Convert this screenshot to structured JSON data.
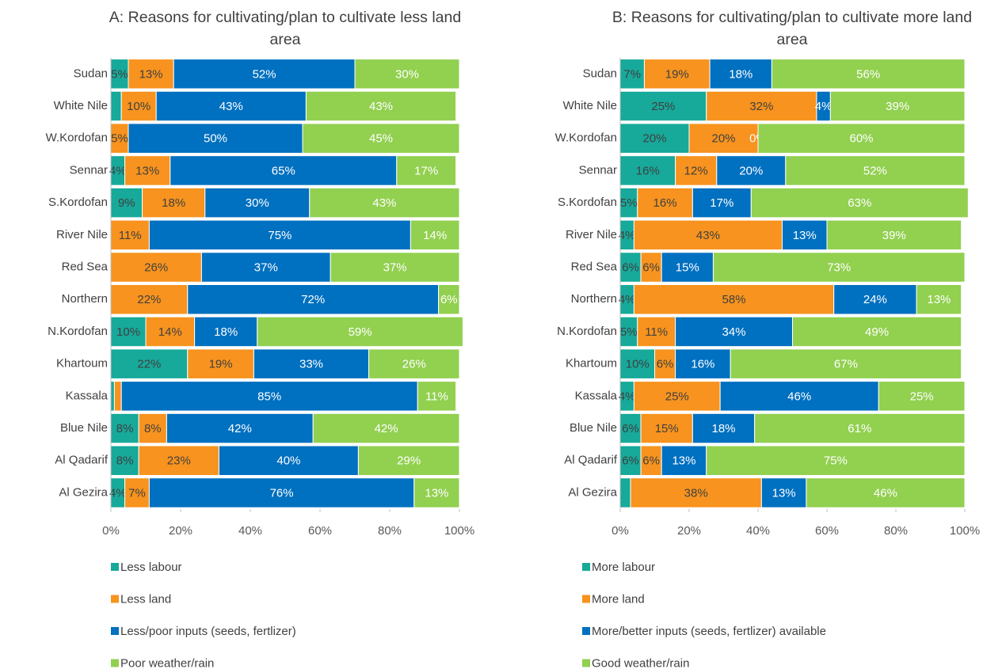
{
  "chart_data": [
    {
      "type": "bar",
      "orientation": "horizontal",
      "stacked": true,
      "title": "A: Reasons for cultivating/plan to cultivate less land area",
      "categories": [
        "Sudan",
        "White Nile",
        "W.Kordofan",
        "Sennar",
        "S.Kordofan",
        "River Nile",
        "Red Sea",
        "Northern",
        "N.Kordofan",
        "Khartoum",
        "Kassala",
        "Blue Nile",
        "Al Qadarif",
        "Al Gezira"
      ],
      "series": [
        {
          "name": "Less labour",
          "color": "#17a99a",
          "label_color": "#404040",
          "values": [
            5,
            3,
            0,
            4,
            9,
            0,
            0,
            0,
            10,
            22,
            1,
            8,
            8,
            4
          ],
          "value_labels": [
            "5%",
            null,
            null,
            "4%",
            "9%",
            null,
            null,
            null,
            "10%",
            "22%",
            null,
            "8%",
            "8%",
            "4%"
          ]
        },
        {
          "name": "Less land",
          "color": "#f7931e",
          "label_color": "#404040",
          "values": [
            13,
            10,
            5,
            13,
            18,
            11,
            26,
            22,
            14,
            19,
            2,
            8,
            23,
            7
          ],
          "value_labels": [
            "13%",
            "10%",
            "5%",
            "13%",
            "18%",
            "11%",
            "26%",
            "22%",
            "14%",
            "19%",
            null,
            "8%",
            "23%",
            "7%"
          ]
        },
        {
          "name": "Less/poor inputs (seeds, fertlizer)",
          "color": "#0070c0",
          "label_color": "#ffffff",
          "values": [
            52,
            43,
            50,
            65,
            30,
            75,
            37,
            72,
            18,
            33,
            85,
            42,
            40,
            76
          ],
          "value_labels": [
            "52%",
            "43%",
            "50%",
            "65%",
            "30%",
            "75%",
            "37%",
            "72%",
            "18%",
            "33%",
            "85%",
            "42%",
            "40%",
            "76%"
          ]
        },
        {
          "name": "Poor weather/rain",
          "color": "#92d050",
          "label_color": "#ffffff",
          "values": [
            30,
            43,
            45,
            17,
            43,
            14,
            37,
            6,
            59,
            26,
            11,
            42,
            29,
            13
          ],
          "value_labels": [
            "30%",
            "43%",
            "45%",
            "17%",
            "43%",
            "14%",
            "37%",
            "6%",
            "59%",
            "26%",
            "11%",
            "42%",
            "29%",
            "13%"
          ]
        }
      ],
      "xlim": [
        0,
        100
      ],
      "xticks": [
        {
          "value": 0,
          "label": "0%"
        },
        {
          "value": 20,
          "label": "20%"
        },
        {
          "value": 40,
          "label": "40%"
        },
        {
          "value": 60,
          "label": "60%"
        },
        {
          "value": 80,
          "label": "80%"
        },
        {
          "value": 100,
          "label": "100%"
        }
      ]
    },
    {
      "type": "bar",
      "orientation": "horizontal",
      "stacked": true,
      "title": "B: Reasons for cultivating/plan to cultivate more land area",
      "categories": [
        "Sudan",
        "White Nile",
        "W.Kordofan",
        "Sennar",
        "S.Kordofan",
        "River Nile",
        "Red Sea",
        "Northern",
        "N.Kordofan",
        "Khartoum",
        "Kassala",
        "Blue Nile",
        "Al Qadarif",
        "Al Gezira"
      ],
      "series": [
        {
          "name": "More labour",
          "color": "#17a99a",
          "label_color": "#404040",
          "values": [
            7,
            25,
            20,
            16,
            5,
            4,
            6,
            4,
            5,
            10,
            4,
            6,
            6,
            3
          ],
          "value_labels": [
            "7%",
            "25%",
            "20%",
            "16%",
            "5%",
            "4%",
            "6%",
            "4%",
            "5%",
            "10%",
            "4%",
            "6%",
            "6%",
            null
          ]
        },
        {
          "name": "More land",
          "color": "#f7931e",
          "label_color": "#404040",
          "values": [
            19,
            32,
            20,
            12,
            16,
            43,
            6,
            58,
            11,
            6,
            25,
            15,
            6,
            38
          ],
          "value_labels": [
            "19%",
            "32%",
            "20%",
            "12%",
            "16%",
            "43%",
            "6%",
            "58%",
            "11%",
            "6%",
            "25%",
            "15%",
            "6%",
            "38%"
          ]
        },
        {
          "name": "More/better inputs (seeds, fertlizer) available",
          "color": "#0070c0",
          "label_color": "#ffffff",
          "values": [
            18,
            4,
            0,
            20,
            17,
            13,
            15,
            24,
            34,
            16,
            46,
            18,
            13,
            13
          ],
          "value_labels": [
            "18%",
            "4%",
            "0%",
            "20%",
            "17%",
            "13%",
            "15%",
            "24%",
            "34%",
            "16%",
            "46%",
            "18%",
            "13%",
            "13%"
          ]
        },
        {
          "name": "Good weather/rain",
          "color": "#92d050",
          "label_color": "#ffffff",
          "values": [
            56,
            39,
            60,
            52,
            63,
            39,
            73,
            13,
            49,
            67,
            25,
            61,
            75,
            46
          ],
          "value_labels": [
            "56%",
            "39%",
            "60%",
            "52%",
            "63%",
            "39%",
            "73%",
            "13%",
            "49%",
            "67%",
            "25%",
            "61%",
            "75%",
            "46%"
          ]
        }
      ],
      "xlim": [
        0,
        100
      ],
      "xticks": [
        {
          "value": 0,
          "label": "0%"
        },
        {
          "value": 20,
          "label": "20%"
        },
        {
          "value": 40,
          "label": "40%"
        },
        {
          "value": 60,
          "label": "60%"
        },
        {
          "value": 80,
          "label": "80%"
        },
        {
          "value": 100,
          "label": "100%"
        }
      ]
    }
  ]
}
